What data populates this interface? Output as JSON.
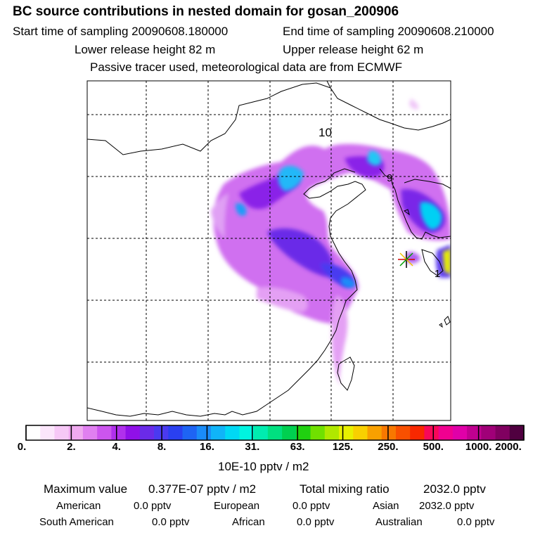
{
  "header": {
    "title": "BC  source contributions in nested domain for gosan_200906",
    "start_time": "Start time of sampling 20090608.180000",
    "end_time": "End time of sampling 20090608.210000",
    "lower_release": "Lower release height   82 m",
    "upper_release": "Upper release height   62 m",
    "tracer_note": "Passive tracer used, meteorological data are from ECMWF"
  },
  "map": {
    "labels": [
      "10",
      "9",
      "1"
    ],
    "receptor_marker": "star-marker"
  },
  "colorbar": {
    "colors": [
      "#ffffff",
      "#fbe6fb",
      "#f6c8f6",
      "#efaaef",
      "#e080f0",
      "#cc55ee",
      "#b030ec",
      "#9010e8",
      "#6a2be8",
      "#4a3af0",
      "#2a40f0",
      "#1e64f4",
      "#1a8cf8",
      "#10b4f8",
      "#00d8f4",
      "#00f4e0",
      "#00ecb0",
      "#00e080",
      "#00d050",
      "#20d010",
      "#70e000",
      "#b0e800",
      "#e8f000",
      "#f8d000",
      "#f8a000",
      "#f87800",
      "#f85000",
      "#f82800",
      "#f80858",
      "#f00090",
      "#e000a8",
      "#c00090",
      "#a00078",
      "#800060",
      "#500040"
    ],
    "ticks": [
      "0.",
      "2.",
      "4.",
      "8.",
      "16.",
      "31.",
      "63.",
      "125.",
      "250.",
      "500.",
      "1000.",
      "2000."
    ],
    "units": "10E-10 pptv / m2"
  },
  "stats": {
    "max_label": "Maximum value",
    "max_value": "0.377E-07 pptv / m2",
    "total_label": "Total mixing ratio",
    "total_value": "2032.0 pptv",
    "american_label": "American",
    "american_value": "0.0 pptv",
    "european_label": "European",
    "european_value": "0.0 pptv",
    "asian_label": "Asian",
    "asian_value": "2032.0 pptv",
    "south_american_label": "South American",
    "south_american_value": "0.0 pptv",
    "african_label": "African",
    "african_value": "0.0 pptv",
    "australian_label": "Australian",
    "australian_value": "0.0 pptv"
  }
}
